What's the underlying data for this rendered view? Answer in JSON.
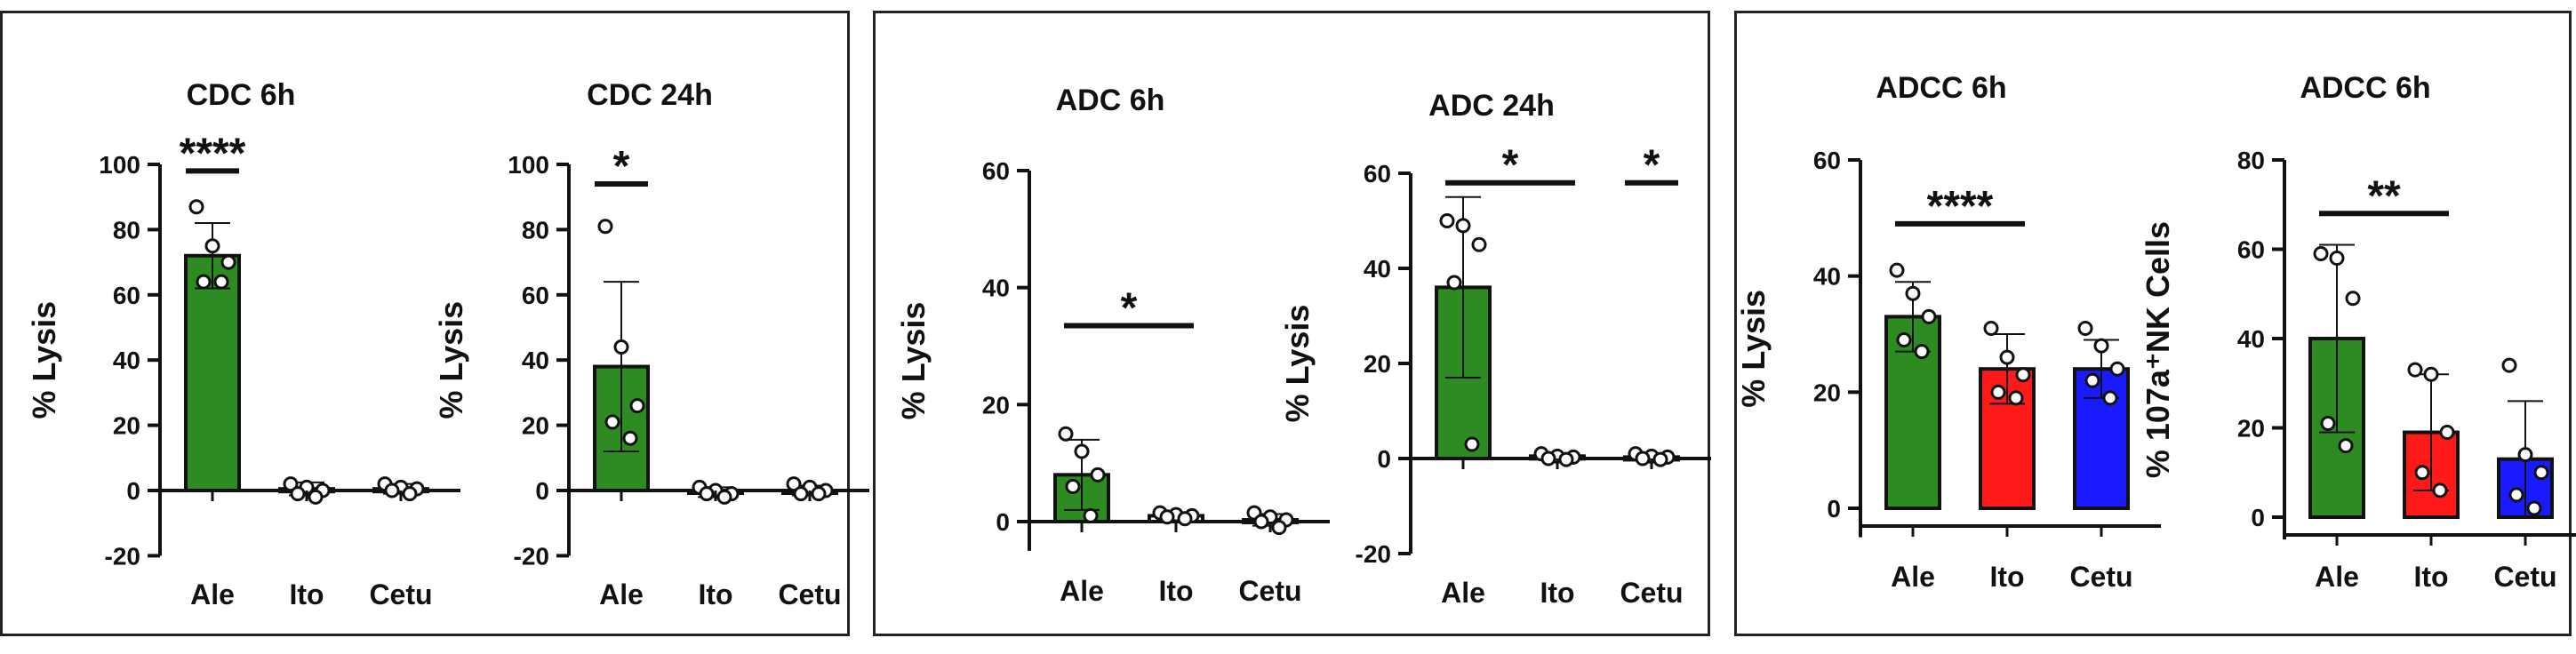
{
  "chart_data": [
    {
      "type": "bar",
      "title": "CDC 6h",
      "ylabel": "% Lysis",
      "categories": [
        "Ale",
        "Ito",
        "Cetu"
      ],
      "values": [
        72,
        0.5,
        0.5
      ],
      "sd": [
        10,
        2,
        1.5
      ],
      "points": [
        [
          87,
          75,
          70,
          64,
          64
        ],
        [
          2,
          1,
          0,
          -1,
          -2
        ],
        [
          2,
          1,
          0.5,
          0,
          -1
        ]
      ],
      "colors": [
        "#2e8b22",
        "#ffffff",
        "#ffffff"
      ],
      "ylim": [
        -20,
        100
      ],
      "yticks": [
        -20,
        0,
        20,
        40,
        60,
        80,
        100
      ],
      "significance": [
        {
          "from": 0,
          "to": 0,
          "y": 98,
          "label": "****"
        }
      ]
    },
    {
      "type": "bar",
      "title": "CDC 24h",
      "ylabel": "% Lysis",
      "categories": [
        "Ale",
        "Ito",
        "Cetu"
      ],
      "values": [
        38,
        -0.5,
        0
      ],
      "sd": [
        26,
        1.5,
        1.5
      ],
      "points": [
        [
          81,
          44,
          26,
          21,
          16
        ],
        [
          1,
          0,
          -1,
          -1,
          -2
        ],
        [
          2,
          1,
          0,
          -1,
          -1
        ]
      ],
      "colors": [
        "#2e8b22",
        "#ffffff",
        "#ffffff"
      ],
      "ylim": [
        -20,
        100
      ],
      "yticks": [
        -20,
        0,
        20,
        40,
        60,
        80,
        100
      ],
      "significance": [
        {
          "from": 0,
          "to": 0,
          "y": 94,
          "label": "*"
        }
      ]
    },
    {
      "type": "bar",
      "title": "ADC 6h",
      "ylabel": "% Lysis",
      "categories": [
        "Ale",
        "Ito",
        "Cetu"
      ],
      "values": [
        8,
        1,
        0.3
      ],
      "sd": [
        6,
        0.5,
        1
      ],
      "points": [
        [
          15,
          12,
          8,
          6,
          1
        ],
        [
          1.5,
          1.2,
          1,
          0.8,
          0.5
        ],
        [
          1.5,
          0.8,
          0.3,
          0,
          -1
        ]
      ],
      "colors": [
        "#2e8b22",
        "#ffffff",
        "#ffffff"
      ],
      "ylim": [
        -5,
        60
      ],
      "yticks": [
        0,
        20,
        40,
        60
      ],
      "significance": [
        {
          "from": 0,
          "to": 1,
          "y": 33.5,
          "label": "*"
        }
      ]
    },
    {
      "type": "bar",
      "title": "ADC 24h",
      "ylabel": "% Lysis",
      "categories": [
        "Ale",
        "Ito",
        "Cetu"
      ],
      "values": [
        36,
        0.5,
        0.3
      ],
      "sd": [
        19,
        0.5,
        0.5
      ],
      "points": [
        [
          50,
          49,
          45,
          37,
          3
        ],
        [
          1,
          0.5,
          0.3,
          0,
          -0.2
        ],
        [
          1,
          0.5,
          0.3,
          0,
          -0.2
        ]
      ],
      "colors": [
        "#2e8b22",
        "#ffffff",
        "#ffffff"
      ],
      "ylim": [
        -20,
        60
      ],
      "yticks": [
        -20,
        0,
        20,
        40,
        60
      ],
      "significance": [
        {
          "from": 0,
          "to": 1,
          "y": 58,
          "label": "*"
        },
        {
          "from": 2,
          "to": 2,
          "y": 58,
          "label": "*"
        }
      ]
    },
    {
      "type": "bar",
      "title": "ADCC 6h",
      "ylabel": "% Lysis",
      "categories": [
        "Ale",
        "Ito",
        "Cetu"
      ],
      "values": [
        33,
        24,
        24
      ],
      "sd": [
        6,
        6,
        5
      ],
      "points": [
        [
          41,
          37,
          33,
          29,
          27
        ],
        [
          31,
          26,
          23,
          20,
          19
        ],
        [
          31,
          28,
          24,
          22,
          19
        ]
      ],
      "colors": [
        "#2e8b22",
        "#ff1a1a",
        "#1a1aff"
      ],
      "ylim": [
        -5,
        60
      ],
      "yticks": [
        0,
        20,
        40,
        60
      ],
      "significance": [
        {
          "from": 0,
          "to": 1,
          "y": 49,
          "label": "****"
        }
      ]
    },
    {
      "type": "bar",
      "title": "ADCC 6h",
      "ylabel": "% 107a⁺NK Cells",
      "categories": [
        "Ale",
        "Ito",
        "Cetu"
      ],
      "values": [
        40,
        19,
        13
      ],
      "sd": [
        21,
        13,
        13
      ],
      "points": [
        [
          59,
          58,
          49,
          21,
          16
        ],
        [
          33,
          32,
          19,
          10,
          6
        ],
        [
          34,
          14,
          10,
          5,
          2
        ]
      ],
      "colors": [
        "#2e8b22",
        "#ff1a1a",
        "#1a1aff"
      ],
      "ylim": [
        -5,
        80
      ],
      "yticks": [
        0,
        20,
        40,
        60,
        80
      ],
      "significance": [
        {
          "from": 0,
          "to": 1,
          "y": 68,
          "label": "**"
        }
      ]
    }
  ]
}
